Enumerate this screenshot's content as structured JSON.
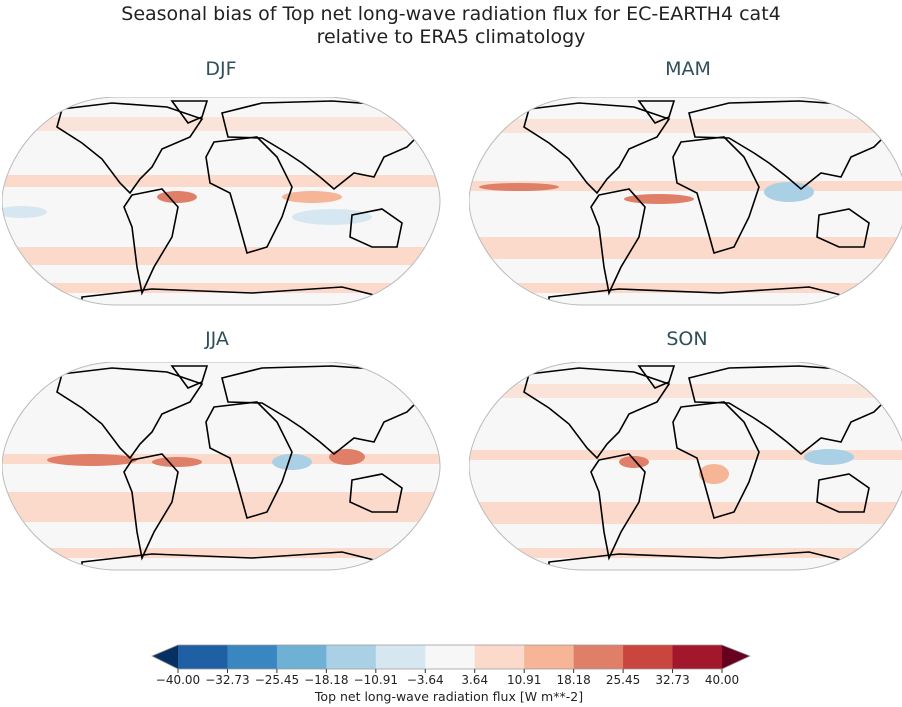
{
  "title_line1": "Seasonal bias of Top net long-wave radiation flux for EC-EARTH4 cat4",
  "title_line2": "relative to ERA5 climatology",
  "panels": [
    {
      "label": "DJF"
    },
    {
      "label": "MAM"
    },
    {
      "label": "JJA"
    },
    {
      "label": "SON"
    }
  ],
  "colorbar": {
    "label": "Top net long-wave radiation flux [W m**-2]",
    "ticks": [
      "−40.00",
      "−32.73",
      "−25.45",
      "−18.18",
      "−10.91",
      "−3.64",
      "3.64",
      "10.91",
      "18.18",
      "25.45",
      "32.73",
      "40.00"
    ],
    "colors": [
      "#053061",
      "#2166ac",
      "#4393c3",
      "#92c5de",
      "#d1e5f0",
      "#f7f7f7",
      "#fddbc7",
      "#f4a582",
      "#d6604d",
      "#b2182b",
      "#67001f"
    ],
    "segment_colors": [
      "#1f5fa3",
      "#3a86c0",
      "#6fb0d5",
      "#a9d0e5",
      "#d7e7f1",
      "#f7f7f7",
      "#fbdacb",
      "#f5b596",
      "#e07f67",
      "#c9453d",
      "#a2172c"
    ],
    "under_color": "#053061",
    "over_color": "#67001f"
  }
}
